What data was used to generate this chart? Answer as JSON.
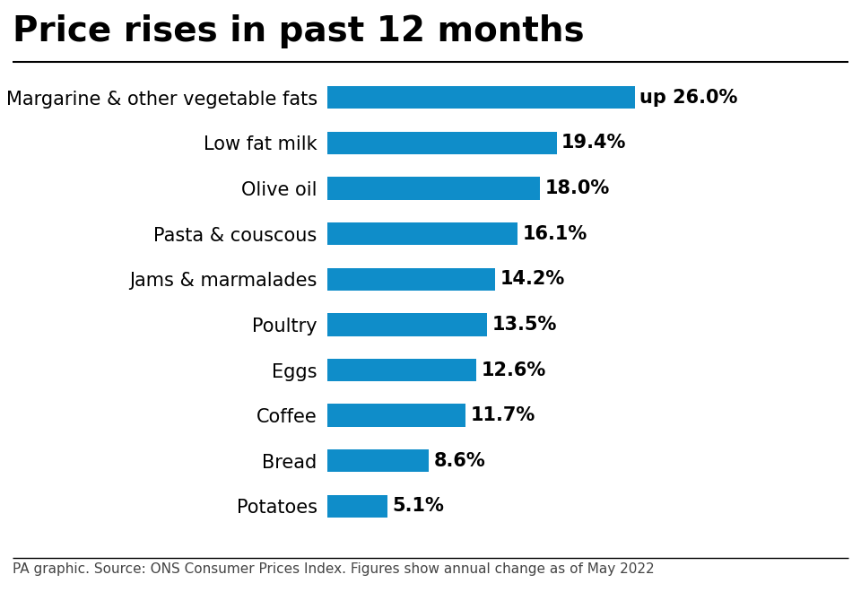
{
  "title": "Price rises in past 12 months",
  "categories": [
    "Margarine & other vegetable fats",
    "Low fat milk",
    "Olive oil",
    "Pasta & couscous",
    "Jams & marmalades",
    "Poultry",
    "Eggs",
    "Coffee",
    "Bread",
    "Potatoes"
  ],
  "values": [
    26.0,
    19.4,
    18.0,
    16.1,
    14.2,
    13.5,
    12.6,
    11.7,
    8.6,
    5.1
  ],
  "labels": [
    "up 26.0%",
    "19.4%",
    "18.0%",
    "16.1%",
    "14.2%",
    "13.5%",
    "12.6%",
    "11.7%",
    "8.6%",
    "5.1%"
  ],
  "bar_color": "#0F8DC9",
  "title_color": "#000000",
  "label_color": "#000000",
  "background_color": "#ffffff",
  "footnote": "PA graphic. Source: ONS Consumer Prices Index. Figures show annual change as of May 2022",
  "title_fontsize": 28,
  "label_fontsize": 15,
  "category_fontsize": 15,
  "footnote_fontsize": 11,
  "xlim": [
    0,
    32
  ]
}
